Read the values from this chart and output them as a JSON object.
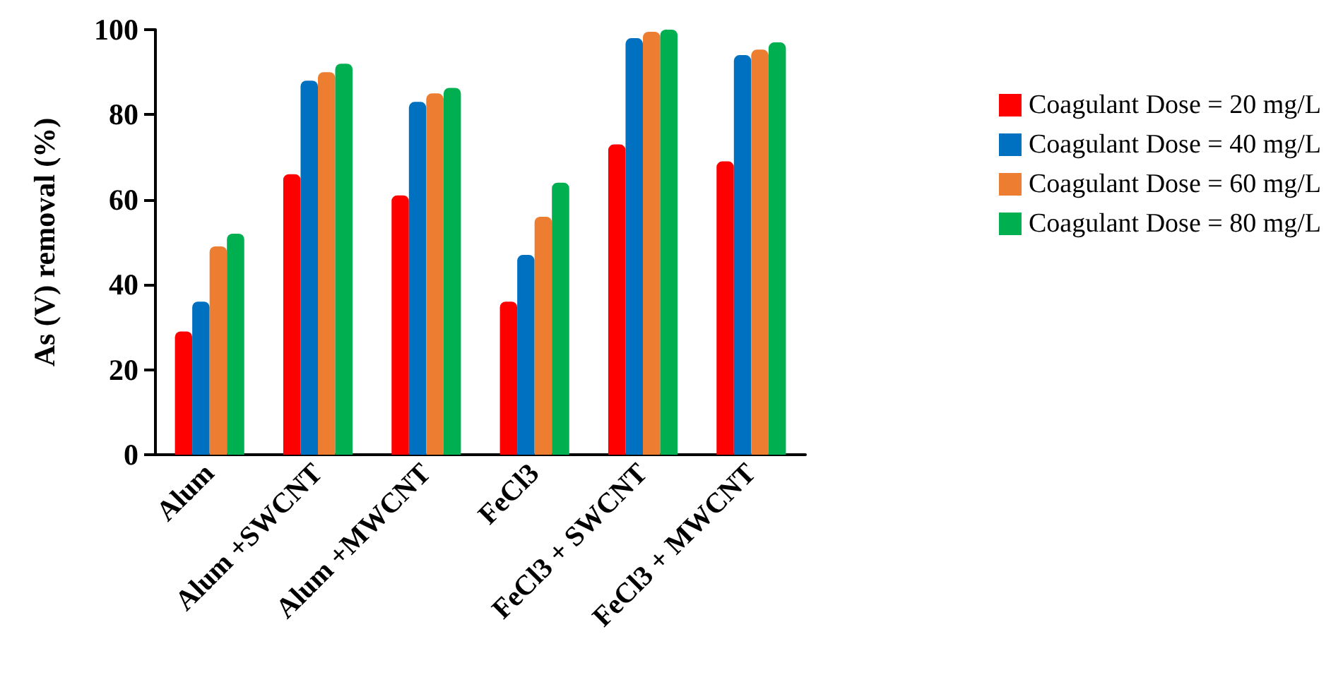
{
  "chart_data": {
    "type": "bar",
    "ylabel": "As (V) removal (%)",
    "categories": [
      "Alum",
      "Alum +SWCNT",
      "Alum +MWCNT",
      "FeCl3",
      "FeCl3 + SWCNT",
      "FeCl3 + MWCNT"
    ],
    "series": [
      {
        "name": "Coagulant Dose = 20 mg/L",
        "color": "#ff0000",
        "values": [
          29,
          66,
          61,
          36,
          73,
          69
        ]
      },
      {
        "name": "Coagulant Dose = 40 mg/L",
        "color": "#0070c0",
        "values": [
          36,
          88,
          83,
          47,
          98,
          94
        ]
      },
      {
        "name": "Coagulant Dose = 60 mg/L",
        "color": "#ed7d31",
        "values": [
          49,
          90,
          85,
          56,
          99.5,
          95.3
        ]
      },
      {
        "name": "Coagulant Dose = 80 mg/L",
        "color": "#00b050",
        "values": [
          52,
          92,
          86.3,
          64,
          100,
          97
        ]
      }
    ],
    "ylim": [
      0,
      100
    ],
    "yticks": [
      0,
      20,
      40,
      60,
      80,
      100
    ],
    "grid": false,
    "legend": "right"
  }
}
